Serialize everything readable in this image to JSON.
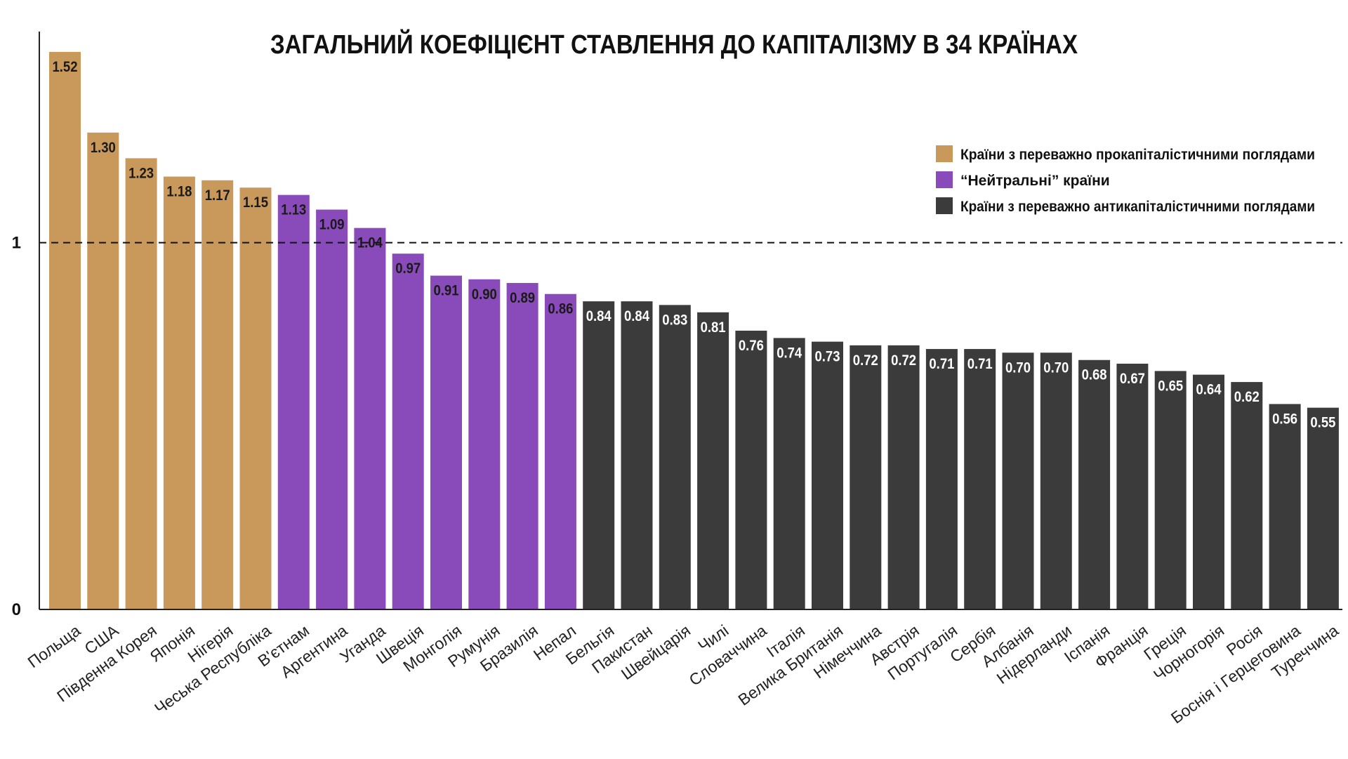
{
  "chart_data": {
    "type": "bar",
    "title": "ЗАГАЛЬНИЙ КОЕФІЦІЄНТ СТАВЛЕННЯ ДО КАПІТАЛІЗМУ В 34 КРАЇНАХ",
    "ylim": [
      0,
      1.56
    ],
    "y_ticks": [
      "0",
      "1"
    ],
    "reference_line": {
      "y": 1,
      "style": "dashed"
    },
    "legend_position": "top-right",
    "groups": [
      {
        "key": "pro",
        "label": "Країни з переважно прокапіталістичними поглядами",
        "color": "#C9995B"
      },
      {
        "key": "neutral",
        "label": "“Нейтральні” країни",
        "color": "#8A4BBA"
      },
      {
        "key": "anti",
        "label": "Країни з переважно антикапіталістичними поглядами",
        "color": "#3B3B3B"
      }
    ],
    "bars": [
      {
        "category": "Польща",
        "value": 1.52,
        "label": "1.52",
        "group": "pro"
      },
      {
        "category": "США",
        "value": 1.3,
        "label": "1.30",
        "group": "pro"
      },
      {
        "category": "Південна Корея",
        "value": 1.23,
        "label": "1.23",
        "group": "pro"
      },
      {
        "category": "Японія",
        "value": 1.18,
        "label": "1.18",
        "group": "pro"
      },
      {
        "category": "Нігерія",
        "value": 1.17,
        "label": "1.17",
        "group": "pro"
      },
      {
        "category": "Чеська Республіка",
        "value": 1.15,
        "label": "1.15",
        "group": "pro"
      },
      {
        "category": "В'єтнам",
        "value": 1.13,
        "label": "1.13",
        "group": "neutral"
      },
      {
        "category": "Аргентина",
        "value": 1.09,
        "label": "1.09",
        "group": "neutral"
      },
      {
        "category": "Уганда",
        "value": 1.04,
        "label": "1.04",
        "group": "neutral"
      },
      {
        "category": "Швеція",
        "value": 0.97,
        "label": "0.97",
        "group": "neutral"
      },
      {
        "category": "Монголія",
        "value": 0.91,
        "label": "0.91",
        "group": "neutral"
      },
      {
        "category": "Румунія",
        "value": 0.9,
        "label": "0.90",
        "group": "neutral"
      },
      {
        "category": "Бразилія",
        "value": 0.89,
        "label": "0.89",
        "group": "neutral"
      },
      {
        "category": "Непал",
        "value": 0.86,
        "label": "0.86",
        "group": "neutral"
      },
      {
        "category": "Бельгія",
        "value": 0.84,
        "label": "0.84",
        "group": "anti"
      },
      {
        "category": "Пакистан",
        "value": 0.84,
        "label": "0.84",
        "group": "anti"
      },
      {
        "category": "Швейцарія",
        "value": 0.83,
        "label": "0.83",
        "group": "anti"
      },
      {
        "category": "Чилі",
        "value": 0.81,
        "label": "0.81",
        "group": "anti"
      },
      {
        "category": "Словаччина",
        "value": 0.76,
        "label": "0.76",
        "group": "anti"
      },
      {
        "category": "Італія",
        "value": 0.74,
        "label": "0.74",
        "group": "anti"
      },
      {
        "category": "Велика Британія",
        "value": 0.73,
        "label": "0.73",
        "group": "anti"
      },
      {
        "category": "Німеччина",
        "value": 0.72,
        "label": "0.72",
        "group": "anti"
      },
      {
        "category": "Австрія",
        "value": 0.72,
        "label": "0.72",
        "group": "anti"
      },
      {
        "category": "Португалія",
        "value": 0.71,
        "label": "0.71",
        "group": "anti"
      },
      {
        "category": "Сербія",
        "value": 0.71,
        "label": "0.71",
        "group": "anti"
      },
      {
        "category": "Албанія",
        "value": 0.7,
        "label": "0.70",
        "group": "anti"
      },
      {
        "category": "Нідерланди",
        "value": 0.7,
        "label": "0.70",
        "group": "anti"
      },
      {
        "category": "Іспанія",
        "value": 0.68,
        "label": "0.68",
        "group": "anti"
      },
      {
        "category": "Франція",
        "value": 0.67,
        "label": "0.67",
        "group": "anti"
      },
      {
        "category": "Греція",
        "value": 0.65,
        "label": "0.65",
        "group": "anti"
      },
      {
        "category": "Чорногорія",
        "value": 0.64,
        "label": "0.64",
        "group": "anti"
      },
      {
        "category": "Росія",
        "value": 0.62,
        "label": "0.62",
        "group": "anti"
      },
      {
        "category": "Боснія і Герцеговина",
        "value": 0.56,
        "label": "0.56",
        "group": "anti"
      },
      {
        "category": "Туреччина",
        "value": 0.55,
        "label": "0.55",
        "group": "anti"
      }
    ]
  }
}
